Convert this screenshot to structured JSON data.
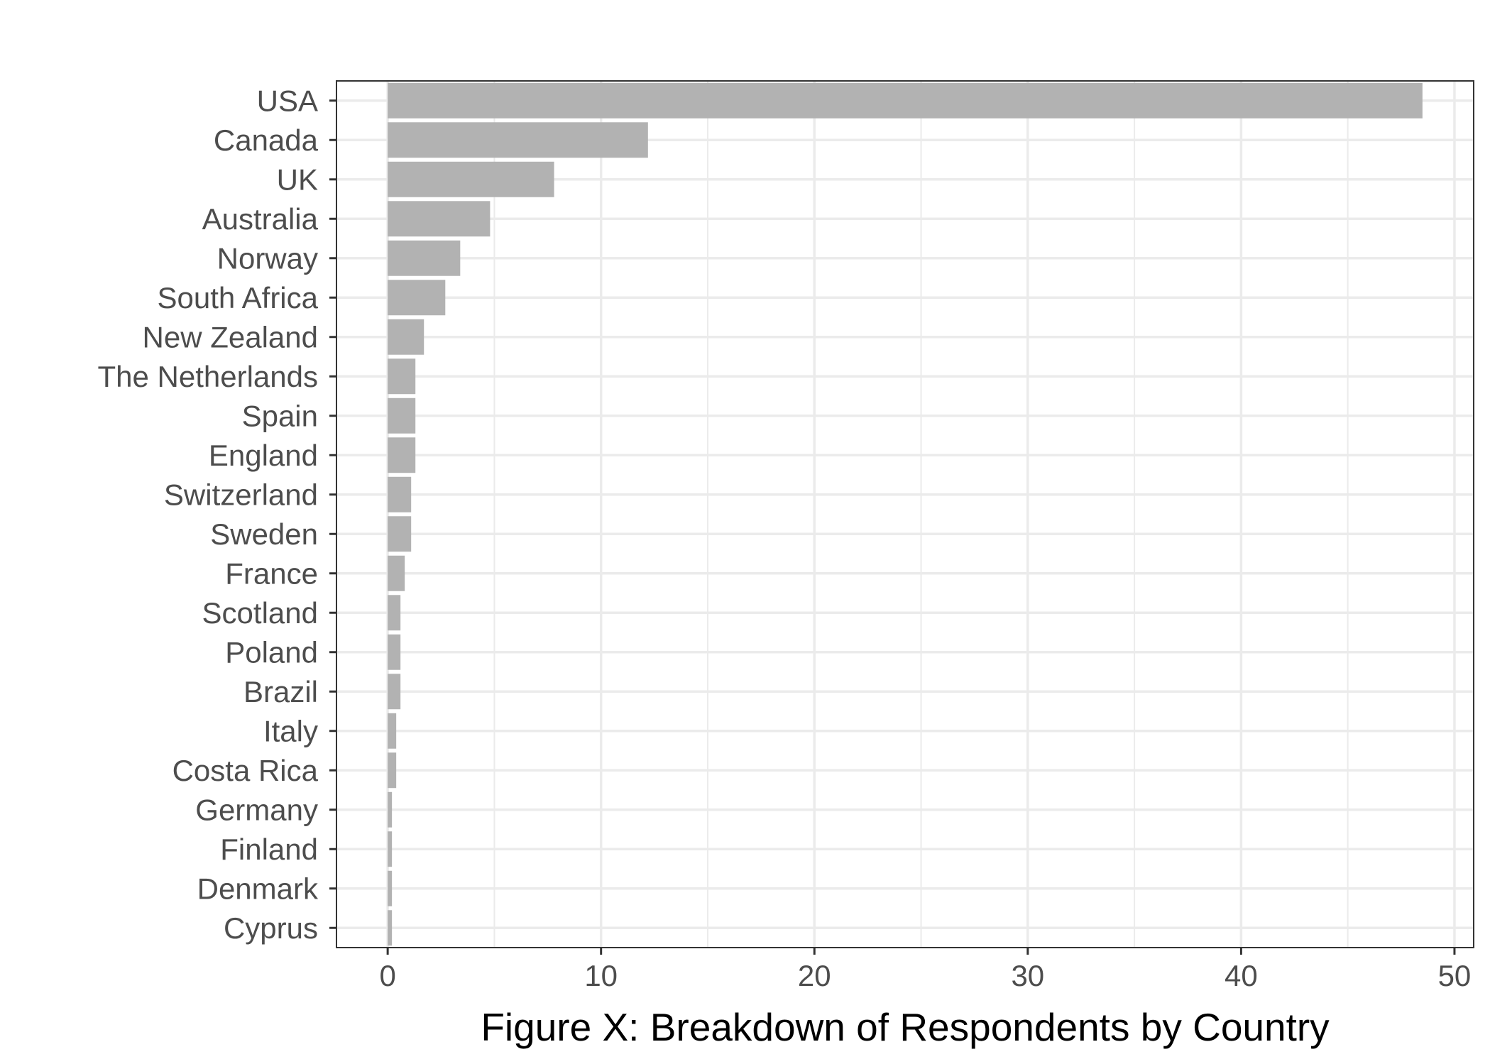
{
  "chart_data": {
    "type": "bar",
    "orientation": "horizontal",
    "title": "",
    "xlabel": "Figure X: Breakdown of Respondents by Country",
    "ylabel": "",
    "categories": [
      "USA",
      "Canada",
      "UK",
      "Australia",
      "Norway",
      "South Africa",
      "New Zealand",
      "The Netherlands",
      "Spain",
      "England",
      "Switzerland",
      "Sweden",
      "France",
      "Scotland",
      "Poland",
      "Brazil",
      "Italy",
      "Costa Rica",
      "Germany",
      "Finland",
      "Denmark",
      "Cyprus"
    ],
    "values": [
      48.5,
      12.2,
      7.8,
      4.8,
      3.4,
      2.7,
      1.7,
      1.3,
      1.3,
      1.3,
      1.1,
      1.1,
      0.8,
      0.6,
      0.6,
      0.6,
      0.4,
      0.4,
      0.2,
      0.2,
      0.2,
      0.2
    ],
    "xlim": [
      -2.4,
      50.9
    ],
    "xticks": [
      0,
      10,
      20,
      30,
      40,
      50
    ],
    "xtick_labels": [
      "0",
      "10",
      "20",
      "30",
      "40",
      "50"
    ],
    "grid": true,
    "legend": "none",
    "bar_color": "#b2b2b2",
    "grid_color": "#ebebeb",
    "panel_border_color": "#333333",
    "tick_label_color": "#4d4d4d"
  }
}
